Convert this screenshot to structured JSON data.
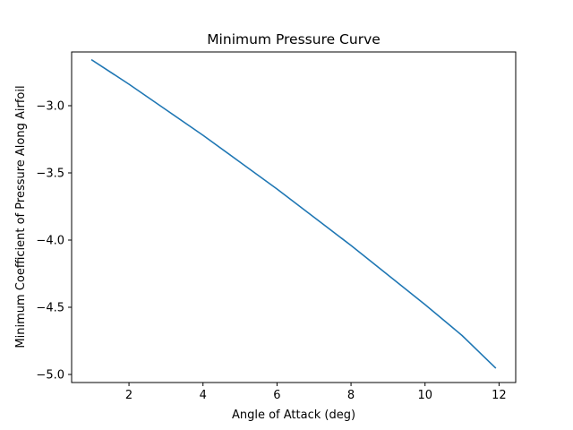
{
  "chart_data": {
    "type": "line",
    "title": "Minimum Pressure Curve",
    "xlabel": "Angle of Attack (deg)",
    "ylabel": "Minimum Coefficient of Pressure Along Airfoil",
    "xlim": [
      0.45,
      12.45
    ],
    "ylim": [
      -5.06,
      -2.6
    ],
    "xticks": [
      2,
      4,
      6,
      8,
      10,
      12
    ],
    "yticks": [
      -3.0,
      -3.5,
      -4.0,
      -4.5,
      -5.0
    ],
    "xtick_labels": [
      "2",
      "4",
      "6",
      "8",
      "10",
      "12"
    ],
    "ytick_labels": [
      "−3.0",
      "−3.5",
      "−4.0",
      "−4.5",
      "−5.0"
    ],
    "grid": false,
    "series": [
      {
        "color": "#1f77b4",
        "x": [
          1,
          2,
          3,
          4,
          5,
          6,
          7,
          8,
          9,
          10,
          11,
          11.9
        ],
        "y": [
          -2.66,
          -2.84,
          -3.03,
          -3.22,
          -3.42,
          -3.62,
          -3.83,
          -4.04,
          -4.26,
          -4.48,
          -4.71,
          -4.95
        ]
      }
    ]
  }
}
